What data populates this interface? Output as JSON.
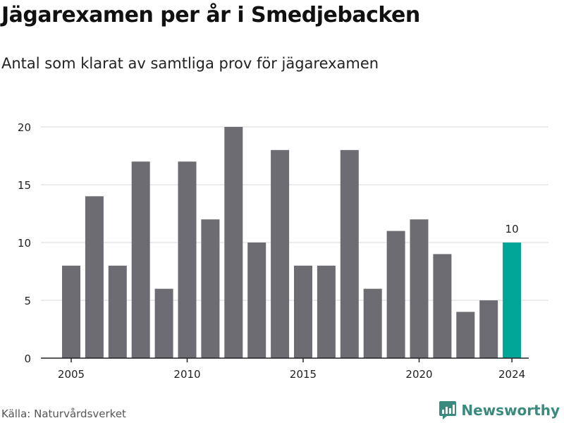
{
  "title": "Jägarexamen per år i Smedjebacken",
  "subtitle": "Antal som klarat av samtliga prov för jägarexamen",
  "source": "Källa: Naturvårdsverket",
  "brand": {
    "name": "Newsworthy",
    "color": "#3a8a7e",
    "icon": "newsworthy-logo-icon"
  },
  "chart_data": {
    "type": "bar",
    "categories": [
      "2005",
      "2006",
      "2007",
      "2008",
      "2009",
      "2010",
      "2011",
      "2012",
      "2013",
      "2014",
      "2015",
      "2016",
      "2017",
      "2018",
      "2019",
      "2020",
      "2021",
      "2022",
      "2023",
      "2024"
    ],
    "values": [
      8,
      14,
      8,
      17,
      6,
      17,
      12,
      20,
      10,
      18,
      8,
      8,
      18,
      6,
      11,
      12,
      9,
      4,
      5,
      10
    ],
    "x_tick_labels": [
      "2005",
      "2010",
      "2015",
      "2020",
      "2024"
    ],
    "y_ticks": [
      0,
      5,
      10,
      15,
      20
    ],
    "ylim": [
      0,
      20
    ],
    "grid": true,
    "colors": {
      "bar": "#6d6c72",
      "highlight": "#00a597",
      "grid": "#d9d9d9",
      "axis": "#222222"
    },
    "highlight": {
      "category": "2024",
      "label": "10"
    },
    "xlabel": "",
    "ylabel": ""
  }
}
